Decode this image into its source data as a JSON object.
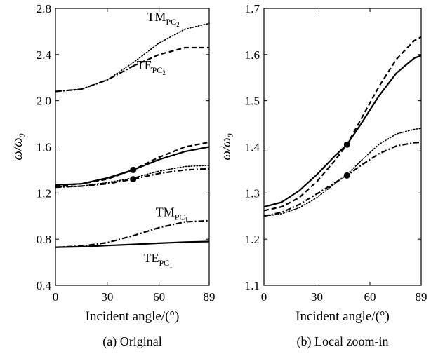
{
  "chart_data": [
    {
      "type": "line",
      "caption": "(a) Original",
      "xlabel": "Incident angle/(°)",
      "ylabel": "ω/ω",
      "ylabel_sub": "0",
      "xlim": [
        0,
        89
      ],
      "ylim": [
        0.4,
        2.8
      ],
      "xticks": [
        "0",
        "30",
        "60",
        "89"
      ],
      "yticks": [
        "0.4",
        "0.8",
        "1.2",
        "1.6",
        "2.0",
        "2.4",
        "2.8"
      ],
      "annotations": [
        {
          "text": "TM",
          "sub": "PC",
          "subsub": "2",
          "x": 53,
          "y": 2.69
        },
        {
          "text": "TE",
          "sub": "PC",
          "subsub": "2",
          "x": 47,
          "y": 2.27
        },
        {
          "text": "TM",
          "sub": "PC",
          "subsub": "1",
          "x": 58,
          "y": 1.0
        },
        {
          "text": "TE",
          "sub": "PC",
          "subsub": "1",
          "x": 51,
          "y": 0.6
        }
      ],
      "markers": [
        {
          "x": 45,
          "y": 1.4
        },
        {
          "x": 45,
          "y": 1.32
        }
      ],
      "series": [
        {
          "style": "dotted",
          "x": [
            0,
            15,
            30,
            45,
            60,
            75,
            89
          ],
          "y": [
            2.08,
            2.1,
            2.18,
            2.33,
            2.5,
            2.62,
            2.67
          ]
        },
        {
          "style": "dashdot",
          "x": [
            0,
            15,
            30,
            45
          ],
          "y": [
            2.08,
            2.1,
            2.18,
            2.3
          ]
        },
        {
          "style": "dashed",
          "x": [
            45,
            60,
            75,
            89
          ],
          "y": [
            2.3,
            2.4,
            2.46,
            2.46
          ]
        },
        {
          "style": "solid",
          "x": [
            0,
            15,
            30,
            45,
            60,
            75,
            89
          ],
          "y": [
            1.27,
            1.28,
            1.33,
            1.4,
            1.49,
            1.56,
            1.6
          ]
        },
        {
          "style": "dashed",
          "x": [
            0,
            15,
            30,
            45,
            60,
            75,
            89
          ],
          "y": [
            1.26,
            1.28,
            1.32,
            1.4,
            1.51,
            1.6,
            1.64
          ]
        },
        {
          "style": "dotted",
          "x": [
            0,
            15,
            30,
            45,
            60,
            75,
            89
          ],
          "y": [
            1.25,
            1.26,
            1.29,
            1.33,
            1.39,
            1.43,
            1.44
          ]
        },
        {
          "style": "dashdot",
          "x": [
            0,
            15,
            30,
            45,
            60,
            75,
            89
          ],
          "y": [
            1.25,
            1.26,
            1.28,
            1.32,
            1.37,
            1.4,
            1.41
          ]
        },
        {
          "style": "dashdot",
          "x": [
            0,
            15,
            30,
            45,
            60,
            75,
            89
          ],
          "y": [
            0.73,
            0.74,
            0.77,
            0.83,
            0.9,
            0.95,
            0.96
          ]
        },
        {
          "style": "solid",
          "x": [
            0,
            15,
            30,
            45,
            60,
            75,
            89
          ],
          "y": [
            0.73,
            0.735,
            0.745,
            0.755,
            0.765,
            0.775,
            0.78
          ]
        }
      ]
    },
    {
      "type": "line",
      "caption": "(b) Local zoom-in",
      "xlabel": "Incident angle/(°)",
      "ylabel": "ω/ω",
      "ylabel_sub": "0",
      "xlim": [
        0,
        89
      ],
      "ylim": [
        1.1,
        1.7
      ],
      "xticks": [
        "0",
        "30",
        "60",
        "89"
      ],
      "yticks": [
        "1.1",
        "1.2",
        "1.3",
        "1.4",
        "1.5",
        "1.6",
        "1.7"
      ],
      "markers": [
        {
          "x": 47,
          "y": 1.405
        },
        {
          "x": 47,
          "y": 1.338
        }
      ],
      "series": [
        {
          "style": "solid",
          "x": [
            0,
            10,
            20,
            30,
            40,
            47,
            55,
            65,
            75,
            85,
            89
          ],
          "y": [
            1.27,
            1.28,
            1.305,
            1.34,
            1.38,
            1.405,
            1.45,
            1.51,
            1.56,
            1.592,
            1.598
          ]
        },
        {
          "style": "dashed",
          "x": [
            0,
            10,
            20,
            30,
            40,
            47,
            55,
            65,
            75,
            85,
            89
          ],
          "y": [
            1.262,
            1.27,
            1.29,
            1.325,
            1.37,
            1.405,
            1.46,
            1.53,
            1.59,
            1.63,
            1.638
          ]
        },
        {
          "style": "dotted",
          "x": [
            0,
            10,
            20,
            30,
            40,
            47,
            55,
            65,
            75,
            85,
            89
          ],
          "y": [
            1.25,
            1.255,
            1.268,
            1.29,
            1.32,
            1.34,
            1.37,
            1.405,
            1.428,
            1.438,
            1.44
          ]
        },
        {
          "style": "dashdot",
          "x": [
            0,
            10,
            20,
            30,
            40,
            47,
            55,
            65,
            75,
            85,
            89
          ],
          "y": [
            1.25,
            1.258,
            1.275,
            1.298,
            1.322,
            1.338,
            1.36,
            1.385,
            1.402,
            1.409,
            1.41
          ]
        }
      ]
    }
  ]
}
